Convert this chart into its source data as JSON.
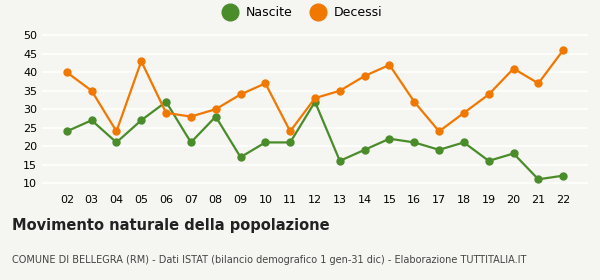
{
  "years": [
    "02",
    "03",
    "04",
    "05",
    "06",
    "07",
    "08",
    "09",
    "10",
    "11",
    "12",
    "13",
    "14",
    "15",
    "16",
    "17",
    "18",
    "19",
    "20",
    "21",
    "22"
  ],
  "nascite": [
    24,
    27,
    21,
    27,
    32,
    21,
    28,
    17,
    21,
    21,
    32,
    16,
    19,
    22,
    21,
    19,
    21,
    16,
    18,
    11,
    12
  ],
  "decessi": [
    40,
    35,
    24,
    43,
    29,
    28,
    30,
    34,
    37,
    24,
    33,
    35,
    39,
    42,
    32,
    24,
    29,
    34,
    41,
    37,
    46
  ],
  "nascite_color": "#4a8c2a",
  "decessi_color": "#f07800",
  "background_color": "#f5f5f2",
  "grid_color": "#ffffff",
  "title": "Movimento naturale della popolazione",
  "subtitle": "COMUNE DI BELLEGRA (RM) - Dati ISTAT (bilancio demografico 1 gen-31 dic) - Elaborazione TUTTITALIA.IT",
  "legend_nascite": "Nascite",
  "legend_decessi": "Decessi",
  "ylim": [
    8,
    52
  ],
  "yticks": [
    10,
    15,
    20,
    25,
    30,
    35,
    40,
    45,
    50
  ],
  "marker_size": 5,
  "linewidth": 1.6,
  "title_fontsize": 10.5,
  "subtitle_fontsize": 7.0,
  "tick_fontsize": 8,
  "legend_fontsize": 9,
  "legend_marker_size": 12
}
